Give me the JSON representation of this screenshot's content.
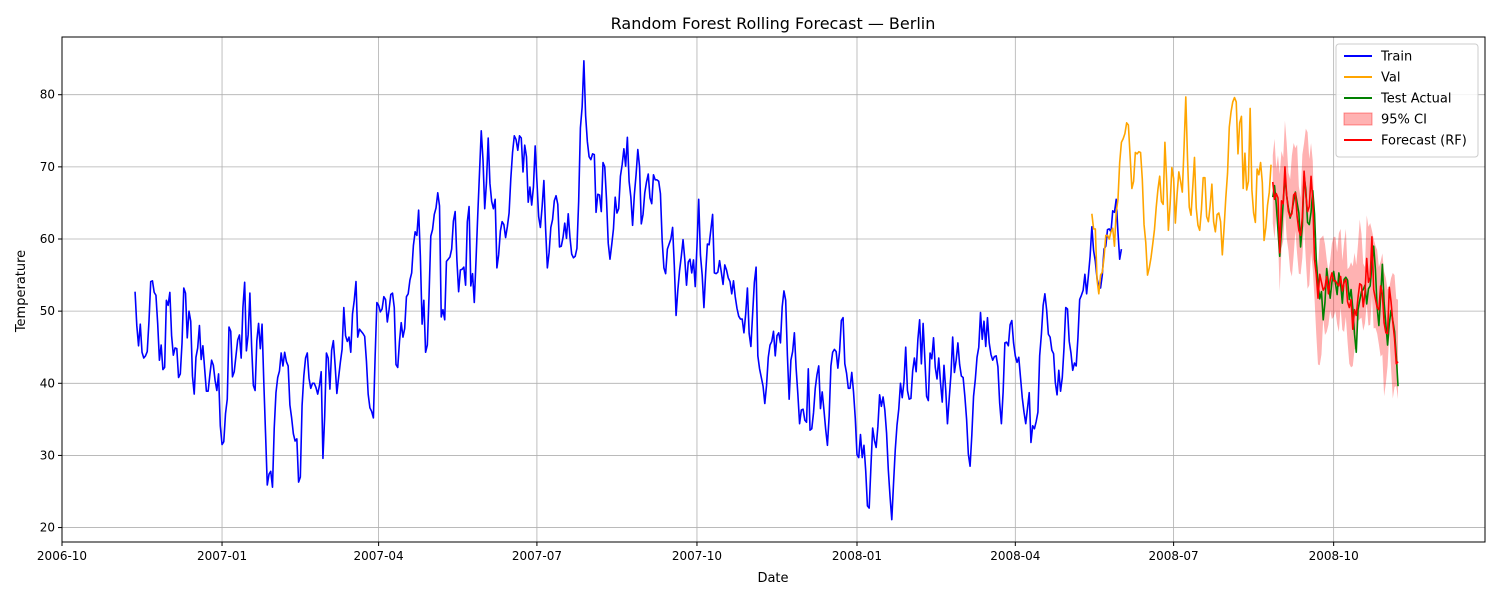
{
  "chart_data": {
    "type": "line",
    "title": "Random Forest Rolling Forecast — Berlin",
    "xlabel": "Date",
    "ylabel": "Temperature",
    "xlim": [
      "2006-10-01",
      "2008-12-27"
    ],
    "ylim": [
      18,
      88
    ],
    "x_ticks": [
      "2006-10-01",
      "2007-01-01",
      "2007-04-01",
      "2007-07-01",
      "2007-10-01",
      "2008-01-01",
      "2008-04-01",
      "2008-07-01",
      "2008-10-01"
    ],
    "x_tick_labels": [
      "2006-10",
      "2007-01",
      "2007-04",
      "2007-07",
      "2007-10",
      "2008-01",
      "2008-04",
      "2008-07",
      "2008-10"
    ],
    "y_ticks": [
      20,
      30,
      40,
      50,
      60,
      70,
      80
    ],
    "grid": true,
    "legend_position": "top-right",
    "colors": {
      "train": "#0000ff",
      "val": "#ffa500",
      "test": "#008000",
      "forecast": "#ff0000",
      "ci": "#ff0000"
    },
    "series": [
      {
        "name": "Train",
        "x_start": "2006-11-12",
        "step_days": 1,
        "values": [
          52.7,
          48.0,
          45.2,
          48.2,
          44.3,
          43.5,
          43.8,
          44.4,
          48.6,
          54.1,
          54.2,
          52.6,
          52.2,
          48.3,
          43.2,
          45.3,
          41.9,
          42.2,
          51.5,
          50.8,
          52.6,
          46.6,
          43.9,
          44.9,
          44.8,
          40.8,
          41.3,
          45.6,
          53.2,
          52.5,
          46.3,
          50.0,
          48.6,
          41.0,
          38.5,
          43.6,
          44.9,
          48.0,
          43.3,
          45.2,
          42.0,
          38.9,
          38.9,
          41.2,
          43.2,
          42.5,
          40.4,
          39.0,
          41.3,
          34.1,
          31.5,
          31.9,
          35.8,
          37.8,
          47.8,
          47.2,
          40.9,
          41.6,
          43.8,
          46.0,
          46.7,
          43.5,
          50.5,
          54.0,
          44.5,
          46.7,
          52.5,
          45.1,
          39.7,
          39.0,
          45.9,
          48.3,
          44.8,
          48.2,
          40.2,
          33.1,
          25.9,
          27.4,
          27.8,
          25.6,
          33.8,
          38.7,
          40.8,
          41.7,
          44.2,
          42.4,
          44.3,
          43.0,
          42.4,
          37.0,
          35.2,
          33.0,
          32.0,
          32.3,
          26.3,
          27.0,
          36.9,
          41.0,
          43.5,
          44.2,
          40.7,
          39.3,
          40.0,
          40.0,
          39.4,
          38.5,
          39.7,
          41.6,
          29.6,
          35.4,
          44.2,
          43.5,
          39.2,
          44.6,
          45.9,
          42.5,
          38.6,
          40.8,
          42.9,
          44.7,
          50.5,
          46.6,
          45.8,
          46.4,
          44.3,
          49.6,
          51.5,
          54.1,
          46.4,
          47.5,
          47.2,
          46.9,
          46.5,
          43.1,
          38.5,
          36.6,
          36.1,
          35.2,
          43.7,
          51.2,
          50.8,
          49.9,
          50.3,
          52.0,
          51.6,
          48.5,
          50.2,
          52.3,
          52.5,
          50.5,
          42.6,
          42.2,
          45.8,
          48.4,
          46.4,
          47.6,
          52.0,
          52.4,
          54.3,
          55.3,
          59.1,
          61.0,
          60.5,
          64.0,
          57.6,
          48.2,
          51.5,
          44.3,
          45.3,
          52.2,
          60.4,
          61.3,
          63.4,
          64.3,
          66.4,
          64.6,
          49.2,
          50.2,
          48.8,
          56.9,
          57.2,
          57.5,
          58.6,
          62.5,
          63.8,
          57.1,
          52.7,
          55.7,
          55.8,
          56.1,
          53.6,
          62.4,
          64.5,
          53.5,
          55.2,
          51.2,
          57.1,
          63.4,
          69.2,
          75.0,
          71.0,
          64.2,
          67.8,
          74.0,
          67.7,
          65.2,
          64.2,
          65.5,
          56.0,
          57.8,
          61.1,
          62.4,
          62.0,
          60.2,
          61.7,
          63.6,
          68.4,
          72.0,
          74.3,
          73.8,
          72.3,
          74.3,
          74.0,
          69.3,
          73.0,
          71.4,
          65.1,
          67.2,
          64.7,
          67.2,
          72.9,
          68.0,
          63.1,
          61.6,
          64.5,
          68.1,
          61.4,
          56.0,
          58.1,
          61.6,
          62.7,
          65.3,
          66.0,
          64.8,
          58.9,
          59.0,
          60.2,
          62.2,
          60.1,
          63.5,
          60.2,
          57.9,
          57.4,
          57.6,
          58.7,
          65.2,
          75.4,
          78.3,
          84.7,
          77.1,
          73.5,
          71.4,
          71.0,
          71.8,
          71.7,
          63.7,
          66.2,
          66.1,
          63.8,
          70.6,
          70.0,
          65.5,
          59.4,
          57.2,
          59.2,
          61.4,
          65.8,
          63.6,
          64.2,
          68.7,
          70.3,
          72.5,
          70.1,
          74.1,
          68.0,
          65.8,
          61.9,
          66.1,
          68.9,
          72.4,
          70.0,
          62.1,
          63.4,
          66.4,
          67.9,
          69.0,
          65.7,
          64.9,
          68.9,
          68.2,
          68.2,
          68.0,
          66.3,
          59.8,
          56.0,
          55.2,
          58.6,
          59.3,
          60.0,
          61.6,
          56.2,
          49.4,
          52.9,
          55.6,
          57.6,
          59.9,
          57.2,
          53.6,
          56.8,
          57.2,
          55.3,
          57.1,
          53.4,
          59.0,
          65.5,
          57.8,
          55.0,
          50.5,
          55.3,
          59.3,
          59.2,
          61.3,
          63.4,
          55.3,
          55.2,
          55.4,
          57.0,
          55.4,
          53.7,
          56.4,
          55.7,
          54.6,
          54.1,
          52.4,
          54.2,
          52.0,
          50.4,
          49.3,
          48.9,
          48.9,
          47.0,
          49.6,
          53.2,
          46.9,
          45.1,
          49.6,
          54.0,
          56.1,
          43.8,
          42.0,
          40.8,
          39.6,
          37.2,
          39.7,
          43.6,
          45.3,
          45.8,
          47.2,
          43.8,
          46.6,
          47.0,
          45.6,
          50.6,
          52.8,
          51.5,
          43.8,
          37.8,
          43.2,
          44.4,
          47.0,
          42.1,
          38.5,
          34.4,
          36.3,
          36.4,
          34.9,
          34.6,
          42.0,
          33.5,
          33.7,
          35.9,
          39.3,
          41.2,
          42.4,
          36.5,
          38.8,
          36.3,
          33.6,
          31.4,
          35.5,
          42.4,
          44.3,
          44.7,
          44.4,
          42.1,
          44.5,
          48.7,
          49.1,
          42.7,
          41.4,
          39.3,
          39.3,
          41.5,
          38.8,
          35.2,
          30.1,
          29.7,
          32.9,
          29.7,
          31.4,
          27.9,
          23.0,
          22.7,
          28.4,
          33.8,
          32.1,
          31.1,
          34.0,
          38.4,
          36.8,
          38.1,
          36.3,
          33.1,
          28.0,
          24.3,
          21.1,
          26.1,
          30.8,
          34.2,
          36.4,
          40.0,
          38.0,
          40.2,
          45.0,
          39.0,
          37.8,
          37.9,
          41.7,
          43.5,
          41.6,
          46.1,
          48.8,
          42.7,
          48.3,
          43.4,
          38.2,
          37.6,
          44.2,
          43.4,
          46.3,
          42.2,
          40.6,
          43.5,
          40.1,
          37.4,
          42.5,
          39.1,
          34.4,
          37.9,
          41.2,
          46.4,
          41.5,
          43.2,
          45.6,
          42.6,
          41.0,
          40.8,
          38.2,
          35.0,
          30.2,
          28.5,
          32.8,
          38.2,
          40.5,
          43.6,
          45.0,
          49.8,
          46.1,
          48.6,
          45.1,
          49.1,
          45.6,
          44.0,
          43.2,
          43.7,
          43.8,
          42.3,
          37.3,
          34.4,
          38.8,
          45.6,
          45.7,
          45.2,
          48.1,
          48.7,
          45.6,
          43.8,
          42.9,
          43.6,
          40.8,
          38.0,
          36.0,
          34.4,
          36.5,
          38.7,
          31.8,
          34.1,
          33.7,
          34.7,
          36.0,
          43.8,
          46.8,
          50.8,
          52.4,
          50.2,
          46.8,
          46.4,
          44.6,
          44.1,
          40.1,
          38.4,
          41.8,
          38.9,
          40.8,
          44.9,
          50.5,
          50.3,
          45.8,
          44.2,
          41.8,
          42.8,
          42.4,
          46.3,
          51.6,
          52.2,
          52.9,
          55.1,
          52.4,
          54.9,
          57.6,
          61.7,
          58.4,
          56.9,
          54.5,
          53.5,
          53.2,
          55.0,
          58.6,
          59.0,
          61.3,
          61.4,
          61.0,
          63.9,
          63.7,
          65.5,
          61.0,
          57.2,
          58.6
        ]
      },
      {
        "name": "Val",
        "x_start": "2008-05-15",
        "step_days": 1,
        "values": [
          63.5,
          61.4,
          61.4,
          54.3,
          52.4,
          55.0,
          55.4,
          57.4,
          60.5,
          60.5,
          60.0,
          61.0,
          61.5,
          59.0,
          63.8,
          65.4,
          70.6,
          73.4,
          73.9,
          74.6,
          76.1,
          75.8,
          71.5,
          67.0,
          68.0,
          72.0,
          71.8,
          72.1,
          72.0,
          68.3,
          62.0,
          59.5,
          55.0,
          56.0,
          57.4,
          59.3,
          61.3,
          64.4,
          66.9,
          68.7,
          65.2,
          64.8,
          73.4,
          68.1,
          61.2,
          64.8,
          69.9,
          68.4,
          62.2,
          66.2,
          69.3,
          68.0,
          66.5,
          72.7,
          79.7,
          71.1,
          64.4,
          63.3,
          67.2,
          71.3,
          64.3,
          61.9,
          61.2,
          64.1,
          68.5,
          68.5,
          63.1,
          62.4,
          64.6,
          67.6,
          62.4,
          61.0,
          63.4,
          63.6,
          62.4,
          57.8,
          61.5,
          65.7,
          69.1,
          75.5,
          77.6,
          79.0,
          79.6,
          79.0,
          71.8,
          76.1,
          77.0,
          67.0,
          71.9,
          66.8,
          68.0,
          78.1,
          66.8,
          63.6,
          62.3,
          69.7,
          68.9,
          70.6,
          67.8,
          59.8,
          61.6,
          64.7,
          66.5,
          70.3
        ]
      },
      {
        "name": "Test Actual",
        "x_start": "2008-08-27",
        "step_days": 1,
        "values": [
          65.8,
          67.4,
          64.8,
          61.2,
          57.6,
          61.2,
          65.1,
          68.7,
          66.0,
          64.3,
          62.9,
          63.8,
          65.2,
          66.5,
          65.0,
          63.6,
          58.9,
          61.8,
          68.7,
          66.9,
          62.3,
          62.0,
          63.7,
          66.7,
          63.5,
          57.1,
          53.9,
          51.7,
          52.7,
          48.8,
          51.2,
          55.9,
          53.8,
          51.8,
          54.0,
          55.5,
          53.9,
          52.3,
          55.3,
          53.8,
          51.1,
          54.4,
          54.7,
          54.3,
          51.6,
          53.0,
          50.4,
          46.8,
          44.3,
          50.2,
          51.5,
          52.7,
          53.0,
          53.6,
          51.0,
          53.1,
          53.5,
          56.4,
          59.0,
          55.8,
          50.5,
          48.0,
          52.0,
          56.5,
          51.2,
          48.2,
          45.3,
          48.3,
          50.1,
          48.7,
          47.2,
          43.8,
          39.6
        ]
      },
      {
        "name": "Forecast (RF)",
        "x_start": "2008-08-27",
        "step_days": 1,
        "values": [
          67.9,
          65.5,
          66.3,
          65.7,
          58.1,
          65.3,
          64.9,
          70.0,
          66.0,
          63.8,
          63.1,
          63.5,
          66.1,
          66.4,
          63.1,
          61.2,
          60.5,
          63.0,
          69.4,
          66.1,
          63.8,
          64.5,
          68.7,
          65.4,
          57.2,
          55.1,
          51.8,
          55.1,
          54.0,
          52.9,
          53.3,
          54.8,
          52.4,
          54.3,
          55.3,
          54.2,
          54.2,
          53.8,
          53.5,
          54.8,
          52.8,
          54.0,
          54.4,
          51.3,
          50.5,
          51.6,
          47.5,
          50.2,
          49.4,
          51.9,
          53.8,
          53.6,
          50.6,
          52.5,
          57.3,
          54.0,
          54.7,
          60.3,
          53.0,
          51.7,
          50.5,
          50.2,
          53.5,
          52.4,
          48.4,
          47.0,
          46.9,
          53.3,
          51.3,
          48.5,
          46.2,
          42.7,
          43.0
        ]
      },
      {
        "name": "95% CI",
        "type": "band",
        "x_start": "2008-08-27",
        "step_days": 1,
        "lower": [
          62.2,
          60.0,
          63.4,
          60.0,
          52.7,
          58.7,
          59.7,
          64.1,
          60.1,
          58.4,
          55.6,
          54.8,
          57.7,
          61.1,
          57.9,
          55.2,
          55.1,
          57.4,
          62.0,
          57.1,
          53.1,
          53.6,
          58.2,
          55.7,
          51.7,
          46.8,
          42.6,
          42.5,
          44.0,
          49.0,
          46.7,
          47.1,
          48.1,
          50.1,
          48.9,
          49.2,
          50.0,
          48.2,
          47.1,
          50.5,
          47.4,
          47.1,
          49.2,
          45.7,
          42.7,
          42.2,
          42.4,
          44.7,
          44.9,
          48.6,
          48.9,
          49.1,
          47.3,
          48.3,
          51.0,
          48.0,
          48.1,
          52.1,
          47.6,
          47.7,
          46.9,
          45.4,
          43.7,
          44.0,
          38.2,
          40.0,
          42.4,
          46.8,
          42.1,
          37.9,
          39.5,
          39.6,
          37.8
        ],
        "upper": [
          71.6,
          73.9,
          69.8,
          71.6,
          69.0,
          72.2,
          71.3,
          76.4,
          73.3,
          69.2,
          68.3,
          71.6,
          73.3,
          72.6,
          73.1,
          67.3,
          65.7,
          71.7,
          73.3,
          75.3,
          74.8,
          71.1,
          73.3,
          70.8,
          60.1,
          58.5,
          56.0,
          60.0,
          60.2,
          60.5,
          59.3,
          57.2,
          55.5,
          57.0,
          59.4,
          60.3,
          60.3,
          58.2,
          60.8,
          61.4,
          57.0,
          59.5,
          61.4,
          55.8,
          56.1,
          56.8,
          56.2,
          58.1,
          56.4,
          59.3,
          62.7,
          60.7,
          56.6,
          56.1,
          63.3,
          61.7,
          62.2,
          61.2,
          60.0,
          59.1,
          58.5,
          56.1,
          56.9,
          58.0,
          55.5,
          54.6,
          53.0,
          53.3,
          54.6,
          55.3,
          55.0,
          51.7,
          51.6
        ]
      }
    ],
    "legend": [
      "Train",
      "Val",
      "Test Actual",
      "95% CI",
      "Forecast (RF)"
    ]
  }
}
